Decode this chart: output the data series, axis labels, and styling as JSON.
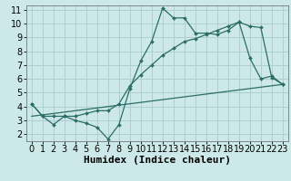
{
  "xlabel": "Humidex (Indice chaleur)",
  "background_color": "#cde8e8",
  "grid_color": "#aacccc",
  "line_color": "#2a6e65",
  "xlim": [
    -0.5,
    23.5
  ],
  "ylim": [
    1.5,
    11.3
  ],
  "xticks": [
    0,
    1,
    2,
    3,
    4,
    5,
    6,
    7,
    8,
    9,
    10,
    11,
    12,
    13,
    14,
    15,
    16,
    17,
    18,
    19,
    20,
    21,
    22,
    23
  ],
  "yticks": [
    2,
    3,
    4,
    5,
    6,
    7,
    8,
    9,
    10,
    11
  ],
  "line1_x": [
    0,
    1,
    2,
    3,
    4,
    5,
    6,
    7,
    8,
    9,
    10,
    11,
    12,
    13,
    14,
    15,
    16,
    17,
    18,
    19,
    20,
    21,
    22,
    23
  ],
  "line1_y": [
    4.2,
    3.3,
    2.7,
    3.3,
    3.0,
    2.8,
    2.5,
    1.65,
    2.7,
    5.3,
    7.3,
    8.7,
    11.1,
    10.4,
    10.4,
    9.3,
    9.3,
    9.2,
    9.5,
    10.1,
    7.5,
    6.0,
    6.2,
    5.6
  ],
  "line2_x": [
    0,
    1,
    2,
    3,
    4,
    5,
    6,
    7,
    8,
    9,
    10,
    11,
    12,
    13,
    14,
    15,
    16,
    17,
    18,
    19,
    20,
    21,
    22,
    23
  ],
  "line2_y": [
    4.2,
    3.3,
    3.3,
    3.3,
    3.3,
    3.5,
    3.7,
    3.7,
    4.2,
    5.5,
    6.3,
    7.0,
    7.7,
    8.2,
    8.7,
    8.9,
    9.2,
    9.5,
    9.8,
    10.1,
    9.8,
    9.7,
    6.1,
    5.6
  ],
  "line3_x": [
    0,
    23
  ],
  "line3_y": [
    3.3,
    5.6
  ],
  "xlabel_fontsize": 8,
  "tick_fontsize": 7
}
